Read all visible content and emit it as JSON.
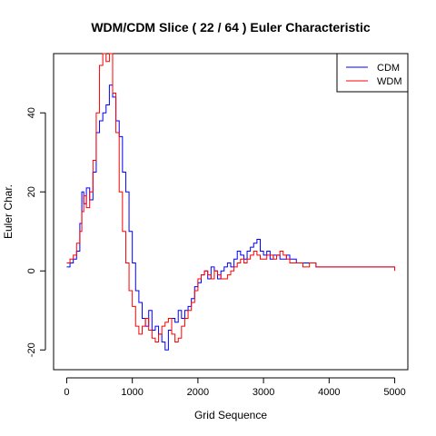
{
  "chart_data": {
    "type": "line",
    "title": "WDM/CDM Slice ( 22 / 64 ) Euler Characteristic",
    "xlabel": "Grid Sequence",
    "ylabel": "Euler Char.",
    "xlim": [
      -200,
      5200
    ],
    "ylim": [
      -25,
      55
    ],
    "xticks": [
      0,
      1000,
      2000,
      3000,
      4000,
      5000
    ],
    "yticks": [
      -20,
      0,
      20,
      40
    ],
    "grid": false,
    "legend_position": "top-right",
    "series": [
      {
        "name": "CDM",
        "color": "#0000ff",
        "x": [
          0,
          50,
          100,
          150,
          200,
          230,
          260,
          300,
          350,
          400,
          450,
          500,
          550,
          600,
          650,
          700,
          750,
          800,
          850,
          900,
          950,
          1000,
          1050,
          1100,
          1150,
          1200,
          1250,
          1300,
          1350,
          1400,
          1450,
          1500,
          1550,
          1600,
          1650,
          1700,
          1750,
          1800,
          1850,
          1900,
          1950,
          2000,
          2050,
          2100,
          2150,
          2200,
          2250,
          2300,
          2350,
          2400,
          2450,
          2500,
          2550,
          2600,
          2650,
          2700,
          2750,
          2800,
          2850,
          2900,
          2950,
          3000,
          3050,
          3100,
          3150,
          3200,
          3250,
          3300,
          3350,
          3400,
          3450,
          3500,
          3600,
          3700,
          3800,
          3900,
          4000,
          4500,
          5000
        ],
        "y": [
          1,
          2,
          3,
          5,
          12,
          20,
          17,
          21,
          18,
          25,
          35,
          38,
          40,
          42,
          47,
          44,
          38,
          34,
          25,
          20,
          10,
          2,
          -5,
          -8,
          -12,
          -14,
          -10,
          -15,
          -14,
          -16,
          -18,
          -20,
          -15,
          -12,
          -13,
          -10,
          -12,
          -10,
          -9,
          -7,
          -4,
          -3,
          -1,
          0,
          -2,
          1,
          0,
          -2,
          0,
          1,
          2,
          1,
          3,
          5,
          4,
          3,
          5,
          6,
          7,
          8,
          5,
          4,
          5,
          3,
          4,
          4,
          3,
          3,
          4,
          3,
          3,
          2,
          2,
          2,
          1,
          1,
          1,
          1,
          1
        ]
      },
      {
        "name": "WDM",
        "color": "#ff0000",
        "x": [
          0,
          50,
          100,
          150,
          200,
          230,
          260,
          300,
          350,
          400,
          450,
          500,
          550,
          600,
          650,
          700,
          750,
          800,
          850,
          900,
          950,
          1000,
          1050,
          1100,
          1150,
          1200,
          1250,
          1300,
          1350,
          1400,
          1450,
          1500,
          1550,
          1600,
          1650,
          1700,
          1750,
          1800,
          1850,
          1900,
          1950,
          2000,
          2050,
          2100,
          2150,
          2200,
          2250,
          2300,
          2350,
          2400,
          2450,
          2500,
          2550,
          2600,
          2650,
          2700,
          2750,
          2800,
          2850,
          2900,
          2950,
          3000,
          3050,
          3100,
          3150,
          3200,
          3250,
          3300,
          3350,
          3400,
          3450,
          3500,
          3600,
          3700,
          3800,
          3900,
          4000,
          4500,
          5000
        ],
        "y": [
          2,
          3,
          4,
          7,
          10,
          15,
          19,
          16,
          20,
          28,
          40,
          52,
          55,
          53,
          55,
          45,
          35,
          20,
          10,
          2,
          -5,
          -9,
          -14,
          -16,
          -14,
          -12,
          -15,
          -17,
          -18,
          -16,
          -14,
          -13,
          -12,
          -16,
          -18,
          -17,
          -14,
          -12,
          -10,
          -8,
          -5,
          -2,
          -1,
          0,
          -1,
          -2,
          0,
          -1,
          -2,
          -2,
          -1,
          0,
          1,
          2,
          3,
          2,
          3,
          4,
          5,
          4,
          3,
          3,
          4,
          4,
          3,
          4,
          5,
          4,
          3,
          2,
          2,
          2,
          1,
          2,
          1,
          1,
          1,
          1,
          0
        ]
      }
    ]
  }
}
